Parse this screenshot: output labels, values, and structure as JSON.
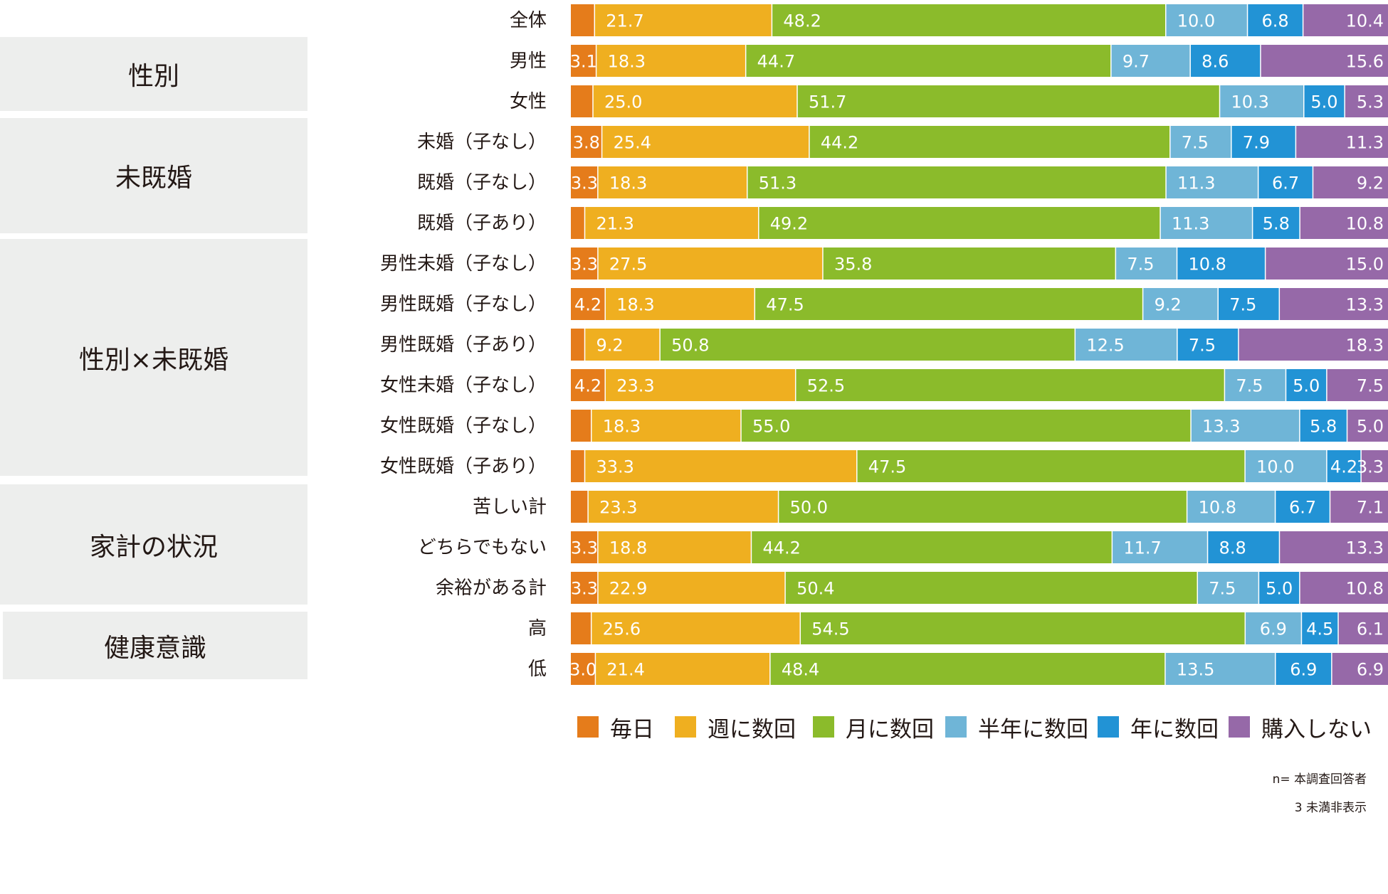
{
  "chart_data": {
    "type": "bar",
    "orientation": "horizontal",
    "stacked": true,
    "percent": true,
    "series": [
      {
        "name": "毎日",
        "color": "#e57c1b",
        "values": [
          2.9,
          3.1,
          2.7,
          3.8,
          3.3,
          1.7,
          3.3,
          4.2,
          1.7,
          4.2,
          2.5,
          1.7,
          2.1,
          3.3,
          3.3,
          2.5,
          3.0
        ]
      },
      {
        "name": "週に数回",
        "color": "#efaf20",
        "values": [
          21.7,
          18.3,
          25.0,
          25.4,
          18.3,
          21.3,
          27.5,
          18.3,
          9.2,
          23.3,
          18.3,
          33.3,
          23.3,
          18.8,
          22.9,
          25.6,
          21.4
        ]
      },
      {
        "name": "月に数回",
        "color": "#8bbb2b",
        "values": [
          48.2,
          44.7,
          51.7,
          44.2,
          51.3,
          49.2,
          35.8,
          47.5,
          50.8,
          52.5,
          55.0,
          47.5,
          50.0,
          44.2,
          50.4,
          54.5,
          48.4
        ]
      },
      {
        "name": "半年に数回",
        "color": "#6fb5d7",
        "values": [
          10.0,
          9.7,
          10.3,
          7.5,
          11.3,
          11.3,
          7.5,
          9.2,
          12.5,
          7.5,
          13.3,
          10.0,
          10.8,
          11.7,
          7.5,
          6.9,
          13.5
        ]
      },
      {
        "name": "年に数回",
        "color": "#2293d5",
        "values": [
          6.8,
          8.6,
          5.0,
          7.9,
          6.7,
          5.8,
          10.8,
          7.5,
          7.5,
          5.0,
          5.8,
          4.2,
          6.7,
          8.8,
          5.0,
          4.5,
          6.9
        ]
      },
      {
        "name": "購入しない",
        "color": "#9669a8",
        "values": [
          10.4,
          15.6,
          5.3,
          11.3,
          9.2,
          10.8,
          15.0,
          13.3,
          18.3,
          7.5,
          5.0,
          3.3,
          7.1,
          13.3,
          10.8,
          6.1,
          6.9
        ]
      }
    ],
    "categories": [
      "全体",
      "男性",
      "女性",
      "未婚（子なし）",
      "既婚（子なし）",
      "既婚（子あり）",
      "男性未婚（子なし）",
      "男性既婚（子なし）",
      "男性既婚（子あり）",
      "女性未婚（子なし）",
      "女性既婚（子なし）",
      "女性既婚（子あり）",
      "苦しい計",
      "どちらでもない",
      "余裕がある計",
      "高",
      "低"
    ],
    "groups": [
      {
        "label": "性別",
        "rows": [
          1,
          2
        ]
      },
      {
        "label": "未既婚",
        "rows": [
          3,
          5
        ]
      },
      {
        "label": "性別×未既婚",
        "rows": [
          6,
          11
        ]
      },
      {
        "label": "家計の状況",
        "rows": [
          12,
          14
        ]
      },
      {
        "label": "健康意識",
        "rows": [
          15,
          16
        ]
      }
    ],
    "label_threshold": 3,
    "xlim": [
      0,
      100
    ],
    "legend": "bottom"
  },
  "notes": {
    "n": "n= 本調査回答者",
    "threshold": "3 未満非表示"
  }
}
